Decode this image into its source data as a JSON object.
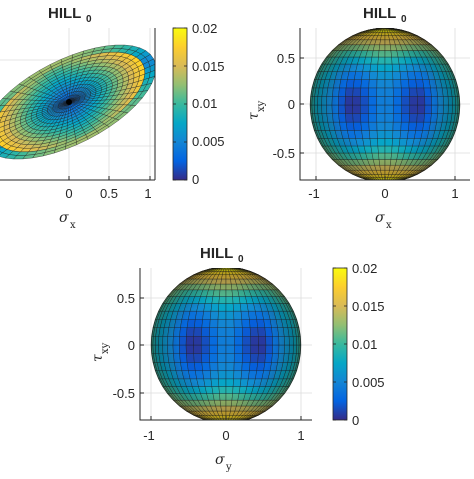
{
  "chart_data": [
    {
      "type": "heatmap",
      "surface": "ellipsoid",
      "title": "HILL",
      "title_subscript": "0",
      "xlabel": "σ",
      "xlabel_subscript": "x",
      "ylabel": "",
      "xlim": [
        -1.05,
        1.05
      ],
      "ylim": [
        -0.8,
        0.8
      ],
      "xticks": [
        "0",
        "0.5",
        "1"
      ],
      "grid": true,
      "colorbar": {
        "ticks": [
          "0.02",
          "0.015",
          "0.01",
          "0.005",
          "0"
        ],
        "range": [
          0,
          0.02
        ]
      }
    },
    {
      "type": "heatmap",
      "surface": "sphere",
      "title": "HILL",
      "title_subscript": "0",
      "xlabel": "σ",
      "xlabel_subscript": "x",
      "ylabel": "τ",
      "ylabel_subscript": "xy",
      "xlim": [
        -1.2,
        1.2
      ],
      "ylim": [
        -0.8,
        0.8
      ],
      "xticks": [
        "-1",
        "0",
        "1"
      ],
      "yticks": [
        "0.5",
        "0",
        "-0.5"
      ],
      "grid": true
    },
    {
      "type": "heatmap",
      "surface": "sphere",
      "title": "HILL",
      "title_subscript": "0",
      "xlabel": "σ",
      "xlabel_subscript": "y",
      "ylabel": "τ",
      "ylabel_subscript": "xy",
      "xlim": [
        -1.2,
        1.2
      ],
      "ylim": [
        -0.8,
        0.8
      ],
      "xticks": [
        "-1",
        "0",
        "1"
      ],
      "yticks": [
        "0.5",
        "0",
        "-0.5"
      ],
      "grid": true,
      "colorbar": {
        "ticks": [
          "0.02",
          "0.015",
          "0.01",
          "0.005",
          "0"
        ],
        "range": [
          0,
          0.02
        ]
      }
    }
  ],
  "colors": {
    "parula": [
      "#352a87",
      "#0363e1",
      "#1485d4",
      "#06a7c6",
      "#38b99e",
      "#92bf73",
      "#d9ba56",
      "#fcce2e",
      "#f9fb0e"
    ]
  }
}
